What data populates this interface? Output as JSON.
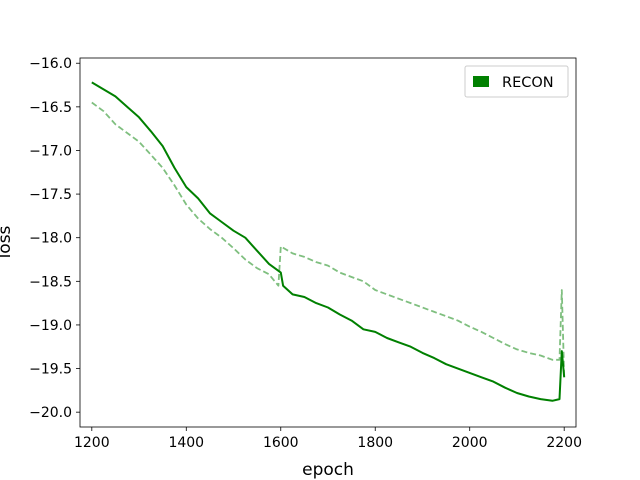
{
  "chart_data": {
    "type": "line",
    "title": "",
    "xlabel": "epoch",
    "ylabel": "loss",
    "xlim": [
      1175,
      2225
    ],
    "ylim": [
      -20.17,
      -15.94
    ],
    "xticks": [
      1200,
      1400,
      1600,
      1800,
      2000,
      2200
    ],
    "yticks": [
      -16.0,
      -16.5,
      -17.0,
      -17.5,
      -18.0,
      -18.5,
      -19.0,
      -19.5,
      -20.0
    ],
    "xtick_labels": [
      "1200",
      "1400",
      "1600",
      "1800",
      "2000",
      "2200"
    ],
    "ytick_labels": [
      "−16.0",
      "−16.5",
      "−17.0",
      "−17.5",
      "−18.0",
      "−18.5",
      "−19.0",
      "−19.5",
      "−20.0"
    ],
    "grid": false,
    "legend": {
      "position": "top-right",
      "entries": [
        {
          "label": "RECON",
          "color": "#008000"
        }
      ]
    },
    "series": [
      {
        "name": "RECON",
        "style": "solid",
        "color": "#008000",
        "x": [
          1200,
          1225,
          1250,
          1275,
          1300,
          1325,
          1350,
          1375,
          1400,
          1425,
          1450,
          1475,
          1500,
          1525,
          1550,
          1575,
          1600,
          1605,
          1625,
          1650,
          1675,
          1700,
          1725,
          1750,
          1775,
          1800,
          1825,
          1850,
          1875,
          1900,
          1925,
          1950,
          1975,
          2000,
          2025,
          2050,
          2075,
          2100,
          2125,
          2150,
          2175,
          2190,
          2195,
          2200
        ],
        "y": [
          -16.22,
          -16.3,
          -16.38,
          -16.5,
          -16.62,
          -16.78,
          -16.95,
          -17.2,
          -17.42,
          -17.55,
          -17.72,
          -17.82,
          -17.92,
          -18.0,
          -18.15,
          -18.3,
          -18.4,
          -18.55,
          -18.65,
          -18.68,
          -18.75,
          -18.8,
          -18.88,
          -18.95,
          -19.05,
          -19.08,
          -19.15,
          -19.2,
          -19.25,
          -19.32,
          -19.38,
          -19.45,
          -19.5,
          -19.55,
          -19.6,
          -19.65,
          -19.72,
          -19.78,
          -19.82,
          -19.85,
          -19.87,
          -19.85,
          -19.3,
          -19.6
        ]
      },
      {
        "style": "dashed",
        "color": "#7fbf7f",
        "x": [
          1200,
          1225,
          1250,
          1275,
          1300,
          1325,
          1350,
          1375,
          1400,
          1425,
          1450,
          1475,
          1500,
          1525,
          1550,
          1575,
          1595,
          1600,
          1625,
          1650,
          1675,
          1700,
          1725,
          1750,
          1775,
          1800,
          1825,
          1850,
          1875,
          1900,
          1925,
          1950,
          1975,
          2000,
          2025,
          2050,
          2075,
          2100,
          2125,
          2150,
          2175,
          2190,
          2195,
          2200
        ],
        "y": [
          -16.45,
          -16.55,
          -16.7,
          -16.8,
          -16.9,
          -17.05,
          -17.2,
          -17.4,
          -17.62,
          -17.78,
          -17.9,
          -18.0,
          -18.12,
          -18.25,
          -18.35,
          -18.42,
          -18.55,
          -18.1,
          -18.18,
          -18.22,
          -18.28,
          -18.32,
          -18.4,
          -18.45,
          -18.5,
          -18.6,
          -18.65,
          -18.7,
          -18.75,
          -18.8,
          -18.85,
          -18.9,
          -18.95,
          -19.02,
          -19.08,
          -19.15,
          -19.22,
          -19.28,
          -19.32,
          -19.35,
          -19.4,
          -19.4,
          -18.6,
          -19.6
        ]
      }
    ]
  }
}
